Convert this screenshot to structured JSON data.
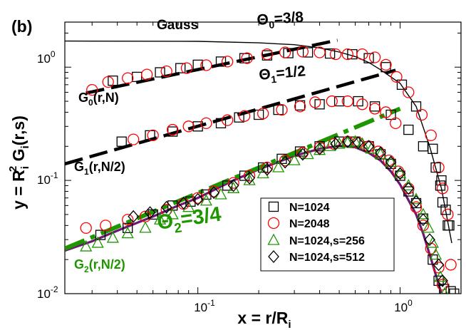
{
  "chart_data": {
    "type": "scatter",
    "panel_label": "(b)",
    "xscale": "log",
    "yscale": "log",
    "xlim": [
      0.022,
      2.0
    ],
    "ylim": [
      0.01,
      2.5
    ],
    "xlabel": {
      "main": "x = r/R",
      "sub": "i"
    },
    "ylabel": {
      "main": "y = R",
      "sub": "i",
      "sup": "2",
      "main2": " G",
      "sub2": "i",
      "tail": "(r,s)"
    },
    "x_ticks": [
      {
        "base": "10",
        "exp": "-1",
        "value": 0.1
      },
      {
        "base": "10",
        "exp": "0",
        "value": 1.0
      }
    ],
    "y_ticks": [
      {
        "base": "10",
        "exp": "-2",
        "value": 0.01
      },
      {
        "base": "10",
        "exp": "-1",
        "value": 0.1
      },
      {
        "base": "10",
        "exp": "0",
        "value": 1.0
      }
    ],
    "colors": {
      "red": "#ff0000",
      "green": "#1e9600",
      "purple": "#6b1870",
      "black": "#000000"
    },
    "legend": {
      "location": "lower-right",
      "entries": [
        {
          "label": "N=1024",
          "marker": "square",
          "color": "#000000"
        },
        {
          "label": "N=2048",
          "marker": "circle",
          "color": "#ff0000"
        },
        {
          "label": "N=1024,s=256",
          "marker": "triangle",
          "color": "#1e9600"
        },
        {
          "label": "N=1024,s=512",
          "marker": "diamond",
          "color": "#000000"
        }
      ]
    },
    "annotations": {
      "gauss": "Gauss",
      "theta0": {
        "sym": "Θ",
        "sub": "0",
        "val": "=3/8"
      },
      "theta1": {
        "sym": "Θ",
        "sub": "1",
        "val": "=1/2"
      },
      "theta2": {
        "sym": "Θ",
        "sub": "2",
        "val": "=3/4"
      },
      "g0": {
        "g": "G",
        "sub": "0",
        "rest": "(r,N)"
      },
      "g1": {
        "g": "G",
        "sub": "1",
        "rest": "(r,N/2)"
      },
      "g2": {
        "g": "G",
        "sub": "2",
        "rest": "(r,N/2)"
      }
    },
    "lines": [
      {
        "name": "Gauss",
        "style": "solid-thin",
        "color": "#000000",
        "points": [
          [
            0.022,
            1.7
          ],
          [
            0.1,
            1.69
          ],
          [
            0.2,
            1.64
          ],
          [
            0.3,
            1.58
          ],
          [
            0.4,
            1.48
          ],
          [
            0.5,
            1.36
          ],
          [
            0.6,
            1.24
          ],
          [
            0.7,
            1.1
          ],
          [
            0.8,
            0.95
          ],
          [
            1.0,
            0.72
          ],
          [
            1.2,
            0.45
          ],
          [
            1.4,
            0.2
          ],
          [
            1.6,
            0.085
          ],
          [
            1.7,
            0.048
          ],
          [
            1.8,
            0.028
          ]
        ]
      },
      {
        "name": "G2 fit",
        "style": "solid-thick",
        "color": "#6b1870",
        "points": [
          [
            0.022,
            0.024
          ],
          [
            0.03,
            0.029
          ],
          [
            0.04,
            0.036
          ],
          [
            0.06,
            0.048
          ],
          [
            0.08,
            0.06
          ],
          [
            0.1,
            0.07
          ],
          [
            0.15,
            0.1
          ],
          [
            0.2,
            0.125
          ],
          [
            0.3,
            0.165
          ],
          [
            0.4,
            0.19
          ],
          [
            0.5,
            0.202
          ],
          [
            0.6,
            0.196
          ],
          [
            0.7,
            0.175
          ],
          [
            0.8,
            0.15
          ],
          [
            0.9,
            0.12
          ],
          [
            1.0,
            0.092
          ],
          [
            1.2,
            0.05
          ],
          [
            1.3,
            0.034
          ],
          [
            1.45,
            0.018
          ],
          [
            1.6,
            0.01
          ]
        ]
      },
      {
        "name": "Θ0=3/8",
        "style": "dashed",
        "color": "#000000",
        "points": [
          [
            0.028,
            0.59
          ],
          [
            0.49,
            1.73
          ]
        ]
      },
      {
        "name": "Θ1=1/2",
        "style": "dashed",
        "color": "#000000",
        "points": [
          [
            0.022,
            0.14
          ],
          [
            0.95,
            0.94
          ]
        ]
      },
      {
        "name": "Θ2=3/4",
        "style": "dashdot",
        "color": "#1e9600",
        "points": [
          [
            0.022,
            0.025
          ],
          [
            1.0,
            0.43
          ]
        ]
      }
    ],
    "series": [
      {
        "name": "G0 N=1024",
        "marker": "square",
        "color": "#000000",
        "points": [
          [
            0.038,
            0.76
          ],
          [
            0.05,
            0.82
          ],
          [
            0.065,
            0.9
          ],
          [
            0.082,
            0.98
          ],
          [
            0.1,
            1.05
          ],
          [
            0.13,
            1.12
          ],
          [
            0.17,
            1.2
          ],
          [
            0.22,
            1.27
          ],
          [
            0.28,
            1.33
          ],
          [
            0.35,
            1.35
          ],
          [
            0.45,
            1.32
          ],
          [
            0.58,
            1.3
          ],
          [
            0.7,
            1.2
          ],
          [
            0.85,
            1.0
          ],
          [
            1.02,
            0.7
          ],
          [
            1.2,
            0.45
          ],
          [
            1.45,
            0.19
          ],
          [
            1.6,
            0.1
          ],
          [
            1.75,
            0.04
          ],
          [
            1.85,
            0.01
          ]
        ]
      },
      {
        "name": "G0 N=2048",
        "marker": "circle",
        "color": "#ff0000",
        "points": [
          [
            0.03,
            0.63
          ],
          [
            0.036,
            0.74
          ],
          [
            0.045,
            0.8
          ],
          [
            0.056,
            0.86
          ],
          [
            0.07,
            0.92
          ],
          [
            0.088,
            0.98
          ],
          [
            0.11,
            1.04
          ],
          [
            0.14,
            1.12
          ],
          [
            0.175,
            1.2
          ],
          [
            0.22,
            1.3
          ],
          [
            0.27,
            1.35
          ],
          [
            0.33,
            1.37
          ],
          [
            0.4,
            1.35
          ],
          [
            0.48,
            1.3
          ],
          [
            0.55,
            1.3
          ],
          [
            0.65,
            1.3
          ],
          [
            0.75,
            1.22
          ],
          [
            0.85,
            1.05
          ],
          [
            0.96,
            0.82
          ],
          [
            1.1,
            0.6
          ],
          [
            1.28,
            0.38
          ],
          [
            1.42,
            0.25
          ],
          [
            1.55,
            0.13
          ],
          [
            1.62,
            0.085
          ],
          [
            1.72,
            0.05
          ],
          [
            1.78,
            0.018
          ]
        ]
      },
      {
        "name": "G1 N=1024",
        "marker": "square",
        "color": "#000000",
        "points": [
          [
            0.042,
            0.22
          ],
          [
            0.058,
            0.25
          ],
          [
            0.075,
            0.27
          ],
          [
            0.1,
            0.3
          ],
          [
            0.13,
            0.32
          ],
          [
            0.16,
            0.36
          ],
          [
            0.2,
            0.38
          ],
          [
            0.25,
            0.42
          ],
          [
            0.32,
            0.46
          ],
          [
            0.4,
            0.47
          ],
          [
            0.5,
            0.5
          ],
          [
            0.62,
            0.5
          ],
          [
            0.75,
            0.45
          ],
          [
            0.9,
            0.38
          ],
          [
            1.1,
            0.28
          ],
          [
            1.3,
            0.2
          ],
          [
            1.5,
            0.13
          ],
          [
            1.58,
            0.09
          ],
          [
            1.62,
            0.064
          ],
          [
            1.68,
            0.055
          ],
          [
            1.72,
            0.04
          ]
        ]
      },
      {
        "name": "G1 N=2048",
        "marker": "circle",
        "color": "#ff0000",
        "points": [
          [
            0.048,
            0.23
          ],
          [
            0.06,
            0.25
          ],
          [
            0.075,
            0.28
          ],
          [
            0.09,
            0.3
          ],
          [
            0.11,
            0.32
          ],
          [
            0.14,
            0.34
          ],
          [
            0.17,
            0.37
          ],
          [
            0.21,
            0.39
          ],
          [
            0.26,
            0.42
          ],
          [
            0.32,
            0.45
          ],
          [
            0.38,
            0.49
          ],
          [
            0.46,
            0.5
          ],
          [
            0.55,
            0.5
          ],
          [
            0.65,
            0.47
          ],
          [
            0.75,
            0.43
          ],
          [
            0.85,
            0.4
          ],
          [
            0.95,
            0.32
          ]
        ]
      },
      {
        "name": "G2 N=1024",
        "marker": "square",
        "color": "#000000",
        "points": [
          [
            0.033,
            0.033
          ],
          [
            0.045,
            0.038
          ],
          [
            0.06,
            0.05
          ],
          [
            0.075,
            0.06
          ],
          [
            0.092,
            0.065
          ],
          [
            0.11,
            0.075
          ],
          [
            0.14,
            0.09
          ],
          [
            0.17,
            0.11
          ],
          [
            0.21,
            0.13
          ],
          [
            0.26,
            0.155
          ],
          [
            0.32,
            0.18
          ],
          [
            0.4,
            0.2
          ],
          [
            0.5,
            0.22
          ],
          [
            0.6,
            0.22
          ],
          [
            0.7,
            0.2
          ],
          [
            0.8,
            0.17
          ],
          [
            0.9,
            0.14
          ],
          [
            1.0,
            0.11
          ],
          [
            1.1,
            0.08
          ],
          [
            1.2,
            0.063
          ],
          [
            1.3,
            0.046
          ],
          [
            1.45,
            0.02
          ],
          [
            1.55,
            0.013
          ],
          [
            1.65,
            0.011
          ],
          [
            1.78,
            0.0105
          ]
        ]
      },
      {
        "name": "G2 N=2048",
        "marker": "circle",
        "color": "#ff0000",
        "points": [
          [
            0.028,
            0.038
          ],
          [
            0.035,
            0.04
          ],
          [
            0.045,
            0.045
          ],
          [
            0.055,
            0.048
          ],
          [
            0.07,
            0.055
          ],
          [
            0.085,
            0.062
          ],
          [
            0.1,
            0.07
          ],
          [
            0.12,
            0.08
          ],
          [
            0.15,
            0.095
          ],
          [
            0.18,
            0.11
          ],
          [
            0.22,
            0.13
          ],
          [
            0.27,
            0.15
          ],
          [
            0.33,
            0.175
          ],
          [
            0.4,
            0.195
          ],
          [
            0.47,
            0.21
          ],
          [
            0.55,
            0.22
          ],
          [
            0.62,
            0.215
          ],
          [
            0.7,
            0.2
          ],
          [
            0.78,
            0.18
          ],
          [
            0.88,
            0.15
          ],
          [
            0.98,
            0.12
          ],
          [
            1.1,
            0.085
          ],
          [
            1.2,
            0.058
          ],
          [
            1.3,
            0.04
          ],
          [
            1.42,
            0.025
          ],
          [
            1.55,
            0.017
          ],
          [
            1.62,
            0.012
          ]
        ]
      },
      {
        "name": "G2 N=1024,s=256",
        "marker": "triangle",
        "color": "#1e9600",
        "points": [
          [
            0.028,
            0.026
          ],
          [
            0.032,
            0.028
          ],
          [
            0.038,
            0.031
          ],
          [
            0.045,
            0.034
          ],
          [
            0.055,
            0.038
          ],
          [
            0.065,
            0.045
          ],
          [
            0.075,
            0.05
          ],
          [
            0.09,
            0.058
          ],
          [
            0.11,
            0.066
          ],
          [
            0.13,
            0.075
          ],
          [
            0.15,
            0.085
          ],
          [
            0.18,
            0.1
          ],
          [
            0.21,
            0.115
          ],
          [
            0.25,
            0.13
          ],
          [
            0.3,
            0.15
          ],
          [
            0.35,
            0.17
          ],
          [
            0.4,
            0.185
          ],
          [
            0.45,
            0.2
          ],
          [
            0.5,
            0.21
          ],
          [
            0.55,
            0.215
          ],
          [
            0.6,
            0.22
          ],
          [
            0.65,
            0.21
          ],
          [
            0.72,
            0.19
          ],
          [
            0.8,
            0.17
          ],
          [
            0.9,
            0.145
          ],
          [
            1.0,
            0.115
          ],
          [
            1.1,
            0.09
          ],
          [
            1.2,
            0.068
          ],
          [
            1.3,
            0.05
          ],
          [
            1.38,
            0.038
          ],
          [
            1.45,
            0.028
          ],
          [
            1.5,
            0.022
          ],
          [
            1.58,
            0.014
          ],
          [
            1.66,
            0.01
          ]
        ]
      },
      {
        "name": "G2 N=1024,s=512",
        "marker": "diamond",
        "color": "#000000",
        "points": [
          [
            0.048,
            0.048
          ],
          [
            0.058,
            0.052
          ],
          [
            0.07,
            0.058
          ],
          [
            0.085,
            0.063
          ],
          [
            0.1,
            0.068
          ],
          [
            0.12,
            0.078
          ],
          [
            0.15,
            0.09
          ],
          [
            0.18,
            0.105
          ],
          [
            0.22,
            0.125
          ],
          [
            0.27,
            0.145
          ],
          [
            0.33,
            0.17
          ],
          [
            0.4,
            0.19
          ],
          [
            0.48,
            0.21
          ],
          [
            0.55,
            0.22
          ],
          [
            0.62,
            0.215
          ],
          [
            0.7,
            0.2
          ],
          [
            0.8,
            0.175
          ],
          [
            0.9,
            0.145
          ],
          [
            1.0,
            0.115
          ],
          [
            1.1,
            0.085
          ],
          [
            1.2,
            0.065
          ],
          [
            1.3,
            0.045
          ],
          [
            1.4,
            0.03
          ],
          [
            1.55,
            0.018
          ],
          [
            1.62,
            0.013
          ]
        ]
      }
    ]
  }
}
